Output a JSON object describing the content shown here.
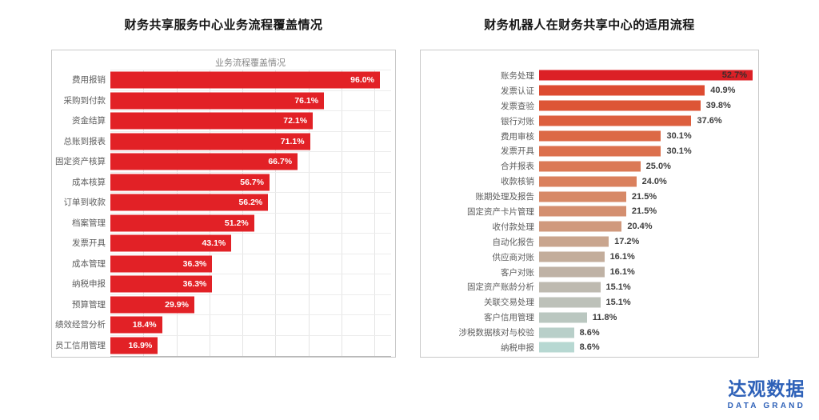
{
  "chart_data": [
    {
      "type": "bar",
      "orientation": "horizontal",
      "title": "财务共享服务中心业务流程覆盖情况",
      "inner_title": "业务流程覆盖情况",
      "categories": [
        "费用报销",
        "采购到付款",
        "资金结算",
        "总账到报表",
        "固定资产核算",
        "成本核算",
        "订单到收款",
        "档案管理",
        "发票开具",
        "成本管理",
        "纳税申报",
        "预算管理",
        "绩效经营分析",
        "员工信用管理"
      ],
      "values": [
        96.0,
        76.1,
        72.1,
        71.1,
        66.7,
        56.7,
        56.2,
        51.2,
        43.1,
        36.3,
        36.3,
        29.9,
        18.4,
        16.9
      ],
      "unit": "%",
      "xlim": [
        0,
        100
      ],
      "grid": true,
      "legend": false,
      "bar_color": "#e22126",
      "value_label_color": "#ffffff",
      "value_label_position": "inside"
    },
    {
      "type": "bar",
      "orientation": "horizontal",
      "title": "财务机器人在财务共享中心的适用流程",
      "categories": [
        "账务处理",
        "发票认证",
        "发票查验",
        "银行对账",
        "费用审核",
        "发票开具",
        "合并报表",
        "收款核销",
        "账期处理及报告",
        "固定资产卡片管理",
        "收付款处理",
        "自动化报告",
        "供应商对账",
        "客户对账",
        "固定资产账龄分析",
        "关联交易处理",
        "客户信用管理",
        "涉税数据核对与校验",
        "纳税申报"
      ],
      "values": [
        52.7,
        40.9,
        39.8,
        37.6,
        30.1,
        30.1,
        25.0,
        24.0,
        21.5,
        21.5,
        20.4,
        17.2,
        16.1,
        16.1,
        15.1,
        15.1,
        11.8,
        8.6,
        8.6
      ],
      "unit": "%",
      "xlim": [
        0,
        52.7
      ],
      "grid": false,
      "legend": false,
      "colors": [
        "#dc2026",
        "#dd4b31",
        "#dd5536",
        "#dd5f3e",
        "#dc6946",
        "#dc704d",
        "#db7955",
        "#da805d",
        "#d78967",
        "#d48f70",
        "#d0997d",
        "#c9a58e",
        "#c3ad9b",
        "#bfb2a5",
        "#bebab0",
        "#bdc1b9",
        "#bac7c0",
        "#b8cfc9",
        "#b7d8d2"
      ],
      "value_label_color": "#3d3d3d",
      "value_label_position": "outside"
    }
  ],
  "logo": {
    "name": "达观数据",
    "subtitle": "DATA GRAND",
    "color": "#2e61b8"
  }
}
